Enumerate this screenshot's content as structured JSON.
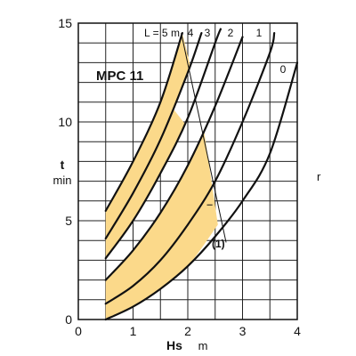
{
  "chart_data": {
    "type": "line",
    "title": "MPC 11",
    "x_axis": {
      "label": "Hs",
      "unit": "m",
      "range": [
        0,
        4
      ],
      "ticks": [
        "0",
        "1",
        "2",
        "3",
        "4"
      ]
    },
    "y_axis": {
      "label": "t",
      "unit": "min",
      "range": [
        0,
        15
      ],
      "ticks": [
        "0",
        "5",
        "10",
        "15"
      ]
    },
    "grid": {
      "vertical": [
        0.5,
        1,
        1.5,
        2,
        2.5,
        3,
        3.5
      ],
      "horizontal": [
        1,
        2,
        3,
        4,
        5,
        6,
        7,
        8,
        9,
        10,
        11,
        12,
        13,
        14
      ]
    },
    "curve_labels": [
      "L = 5 m",
      "4",
      "3",
      "2",
      "1",
      "0"
    ],
    "series": [
      {
        "name": "L = 5 m",
        "points": [
          [
            0.5,
            5.5
          ],
          [
            1.0,
            8.0
          ],
          [
            1.5,
            11.0
          ],
          [
            1.9,
            14.5
          ]
        ]
      },
      {
        "name": "4",
        "points": [
          [
            0.5,
            4.1
          ],
          [
            1.0,
            6.4
          ],
          [
            1.5,
            9.1
          ],
          [
            2.0,
            12.5
          ],
          [
            2.25,
            14.5
          ]
        ]
      },
      {
        "name": "3",
        "points": [
          [
            0.5,
            3.1
          ],
          [
            1.0,
            5.0
          ],
          [
            1.5,
            7.4
          ],
          [
            2.0,
            10.2
          ],
          [
            2.5,
            14.0
          ],
          [
            2.6,
            14.7
          ]
        ]
      },
      {
        "name": "2",
        "points": [
          [
            0.5,
            2.0
          ],
          [
            1.0,
            3.5
          ],
          [
            1.5,
            5.4
          ],
          [
            2.0,
            7.8
          ],
          [
            2.5,
            10.8
          ],
          [
            3.0,
            14.3
          ]
        ]
      },
      {
        "name": "1",
        "points": [
          [
            0.5,
            0.8
          ],
          [
            1.0,
            1.7
          ],
          [
            1.5,
            3.0
          ],
          [
            2.0,
            4.8
          ],
          [
            2.5,
            7.0
          ],
          [
            3.0,
            10.0
          ],
          [
            3.5,
            13.5
          ],
          [
            3.58,
            14.5
          ]
        ]
      },
      {
        "name": "0",
        "points": [
          [
            0.5,
            0.0
          ],
          [
            1.0,
            0.65
          ],
          [
            1.5,
            1.55
          ],
          [
            2.0,
            2.7
          ],
          [
            2.5,
            4.2
          ],
          [
            3.0,
            6.0
          ],
          [
            3.5,
            8.4
          ],
          [
            4.0,
            13.0
          ]
        ]
      }
    ],
    "shaded_bands": [
      {
        "upper": [
          [
            0.5,
            5.5
          ],
          [
            1.0,
            8.0
          ],
          [
            1.5,
            11.0
          ],
          [
            1.9,
            14.5
          ]
        ],
        "lower": [
          [
            2.05,
            12.8
          ],
          [
            1.5,
            9.1
          ],
          [
            1.0,
            6.4
          ],
          [
            0.5,
            4.1
          ]
        ]
      },
      {
        "upper": [
          [
            0.5,
            4.1
          ],
          [
            1.0,
            6.4
          ],
          [
            1.5,
            9.1
          ],
          [
            1.75,
            10.6
          ]
        ],
        "lower": [
          [
            1.95,
            9.9
          ],
          [
            1.5,
            7.4
          ],
          [
            1.0,
            5.0
          ],
          [
            0.5,
            3.1
          ]
        ]
      },
      {
        "upper": [
          [
            0.5,
            2.0
          ],
          [
            1.0,
            3.5
          ],
          [
            1.5,
            5.4
          ],
          [
            2.0,
            7.8
          ],
          [
            2.3,
            9.5
          ]
        ],
        "lower": [
          [
            2.55,
            4.8
          ],
          [
            2.0,
            2.7
          ],
          [
            1.5,
            1.55
          ],
          [
            1.0,
            0.65
          ],
          [
            0.5,
            0.0
          ]
        ]
      }
    ],
    "pointer_line": [
      [
        1.88,
        14.5
      ],
      [
        2.7,
        3.9
      ]
    ],
    "callout": "(1)",
    "stray_text": "r",
    "fill_color": "#fbd98a",
    "line_color": "#111111"
  }
}
